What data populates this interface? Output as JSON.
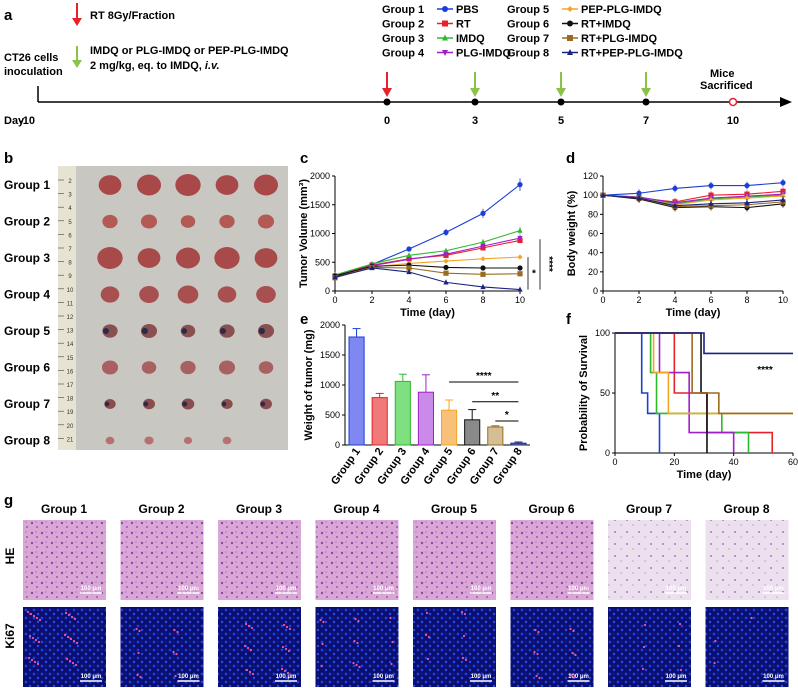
{
  "panels": {
    "a": {
      "letter": "a",
      "rt_label": "RT 8Gy/Fraction",
      "drug_label": "IMDQ or PLG-IMDQ or PEP-PLG-IMDQ",
      "dose_label": "2 mg/kg, eq. to IMDQ,",
      "dose_route": "i.v.",
      "inoc_line1": "CT26 cells",
      "inoc_line2": "inoculation",
      "day_label": "Day",
      "timeline_days": [
        "-10",
        "0",
        "3",
        "5",
        "7",
        "10"
      ],
      "sacrifice_line1": "Mice",
      "sacrifice_line2": "Sacrificed",
      "groups": [
        {
          "name": "Group 1",
          "treatment": "PBS",
          "color": "#1a3fd6",
          "marker": "circle"
        },
        {
          "name": "Group 2",
          "treatment": "RT",
          "color": "#e8202a",
          "marker": "square"
        },
        {
          "name": "Group 3",
          "treatment": "IMDQ",
          "color": "#2eb82e",
          "marker": "triangle-up"
        },
        {
          "name": "Group 4",
          "treatment": "PLG-IMDQ",
          "color": "#a020c8",
          "marker": "triangle-down"
        },
        {
          "name": "Group 5",
          "treatment": "PEP-PLG-IMDQ",
          "color": "#f5a524",
          "marker": "diamond"
        },
        {
          "name": "Group 6",
          "treatment": "RT+IMDQ",
          "color": "#111111",
          "marker": "circle"
        },
        {
          "name": "Group 7",
          "treatment": "RT+PLG-IMDQ",
          "color": "#9c6b22",
          "marker": "square"
        },
        {
          "name": "Group 8",
          "treatment": "RT+PEP-PLG-IMDQ",
          "color": "#1a237e",
          "marker": "triangle-up"
        }
      ]
    },
    "b": {
      "letter": "b",
      "rows": [
        "Group 1",
        "Group 2",
        "Group 3",
        "Group 4",
        "Group 5",
        "Group 6",
        "Group 7",
        "Group 8"
      ],
      "ruler_marks": [
        "2",
        "3",
        "4",
        "5",
        "6",
        "7",
        "8",
        "9",
        "10",
        "11",
        "12",
        "13",
        "14",
        "15",
        "16",
        "17",
        "18",
        "19",
        "20",
        "21"
      ]
    },
    "g": {
      "letter": "g",
      "columns": [
        "Group 1",
        "Group 2",
        "Group 3",
        "Group 4",
        "Group 5",
        "Group 6",
        "Group 7",
        "Group 8"
      ],
      "row_labels": [
        "HE",
        "Ki67"
      ],
      "scale_bar": "100 μm"
    }
  },
  "chart_data": [
    {
      "panel": "c",
      "type": "line",
      "xlabel": "Time (day)",
      "ylabel": "Tumor Volume (mm³)",
      "x": [
        0,
        2,
        4,
        6,
        8,
        10
      ],
      "xlim": [
        0,
        10
      ],
      "ylim": [
        0,
        2000
      ],
      "xticks": [
        "0",
        "2",
        "4",
        "6",
        "8",
        "10"
      ],
      "yticks": [
        "0",
        "500",
        "1000",
        "1500",
        "2000"
      ],
      "series": [
        {
          "name": "Group 1",
          "values": [
            270,
            460,
            730,
            1020,
            1350,
            1850
          ]
        },
        {
          "name": "Group 2",
          "values": [
            260,
            450,
            560,
            620,
            750,
            880
          ]
        },
        {
          "name": "Group 3",
          "values": [
            280,
            470,
            620,
            700,
            850,
            1050
          ]
        },
        {
          "name": "Group 4",
          "values": [
            250,
            440,
            550,
            640,
            780,
            920
          ]
        },
        {
          "name": "Group 5",
          "values": [
            240,
            420,
            480,
            520,
            560,
            590
          ]
        },
        {
          "name": "Group 6",
          "values": [
            260,
            430,
            450,
            410,
            400,
            400
          ]
        },
        {
          "name": "Group 7",
          "values": [
            230,
            410,
            400,
            310,
            290,
            300
          ]
        },
        {
          "name": "Group 8",
          "values": [
            240,
            400,
            330,
            150,
            70,
            25
          ]
        }
      ],
      "significance": [
        "*",
        "****"
      ]
    },
    {
      "panel": "d",
      "type": "line",
      "xlabel": "Time (day)",
      "ylabel": "Body weight (%)",
      "x": [
        0,
        2,
        4,
        6,
        8,
        10
      ],
      "xlim": [
        0,
        10
      ],
      "ylim": [
        0,
        120
      ],
      "xticks": [
        "0",
        "2",
        "4",
        "6",
        "8",
        "10"
      ],
      "yticks": [
        "0",
        "20",
        "40",
        "60",
        "80",
        "100",
        "120"
      ],
      "series": [
        {
          "name": "Group 1",
          "values": [
            100,
            102,
            107,
            110,
            110,
            113
          ]
        },
        {
          "name": "Group 2",
          "values": [
            100,
            97,
            93,
            100,
            101,
            104
          ]
        },
        {
          "name": "Group 3",
          "values": [
            100,
            98,
            91,
            96,
            98,
            100
          ]
        },
        {
          "name": "Group 4",
          "values": [
            100,
            98,
            92,
            97,
            99,
            101
          ]
        },
        {
          "name": "Group 5",
          "values": [
            100,
            97,
            90,
            95,
            97,
            99
          ]
        },
        {
          "name": "Group 6",
          "values": [
            100,
            96,
            87,
            88,
            87,
            91
          ]
        },
        {
          "name": "Group 7",
          "values": [
            100,
            97,
            88,
            89,
            90,
            93
          ]
        },
        {
          "name": "Group 8",
          "values": [
            100,
            97,
            89,
            91,
            92,
            95
          ]
        }
      ]
    },
    {
      "panel": "e",
      "type": "bar",
      "ylabel": "Weight of tumor (mg)",
      "categories": [
        "Group 1",
        "Group 2",
        "Group 3",
        "Group 4",
        "Group 5",
        "Group 6",
        "Group 7",
        "Group 8"
      ],
      "values": [
        1800,
        790,
        1060,
        880,
        580,
        420,
        300,
        30
      ],
      "errors": [
        140,
        70,
        120,
        290,
        170,
        170,
        20,
        20
      ],
      "ylim": [
        0,
        2000
      ],
      "yticks": [
        "0",
        "500",
        "1000",
        "1500",
        "2000"
      ],
      "comparisons": [
        {
          "label": "****",
          "from": "Group 5",
          "to": "Group 8"
        },
        {
          "label": "**",
          "from": "Group 6",
          "to": "Group 8"
        },
        {
          "label": "*",
          "from": "Group 7",
          "to": "Group 8"
        }
      ]
    },
    {
      "panel": "f",
      "type": "line",
      "xlabel": "Time (day)",
      "ylabel": "Probability of Survival",
      "xlim": [
        0,
        60
      ],
      "ylim": [
        0,
        100
      ],
      "xticks": [
        "0",
        "20",
        "40",
        "60"
      ],
      "yticks": [
        "0",
        "50",
        "100"
      ],
      "significance": "****",
      "series": [
        {
          "name": "Group 1",
          "steps": [
            [
              0,
              100
            ],
            [
              9,
              100
            ],
            [
              9,
              50
            ],
            [
              11,
              50
            ],
            [
              11,
              33
            ],
            [
              15,
              33
            ],
            [
              15,
              0
            ]
          ]
        },
        {
          "name": "Group 2",
          "steps": [
            [
              0,
              100
            ],
            [
              20,
              100
            ],
            [
              20,
              50
            ],
            [
              31,
              50
            ],
            [
              31,
              17
            ],
            [
              53,
              17
            ],
            [
              53,
              0
            ]
          ]
        },
        {
          "name": "Group 3",
          "steps": [
            [
              0,
              100
            ],
            [
              12,
              100
            ],
            [
              12,
              67
            ],
            [
              14,
              67
            ],
            [
              14,
              33
            ],
            [
              36,
              33
            ],
            [
              36,
              17
            ],
            [
              45,
              17
            ],
            [
              45,
              0
            ]
          ]
        },
        {
          "name": "Group 4",
          "steps": [
            [
              0,
              100
            ],
            [
              15,
              100
            ],
            [
              15,
              67
            ],
            [
              25,
              67
            ],
            [
              25,
              17
            ],
            [
              40,
              17
            ],
            [
              40,
              0
            ]
          ]
        },
        {
          "name": "Group 5",
          "steps": [
            [
              0,
              100
            ],
            [
              13,
              100
            ],
            [
              13,
              67
            ],
            [
              18,
              67
            ],
            [
              18,
              33
            ],
            [
              60,
              33
            ]
          ]
        },
        {
          "name": "Group 6",
          "steps": [
            [
              0,
              100
            ],
            [
              29,
              100
            ],
            [
              29,
              50
            ],
            [
              31,
              50
            ],
            [
              31,
              0
            ]
          ]
        },
        {
          "name": "Group 7",
          "steps": [
            [
              0,
              100
            ],
            [
              26,
              100
            ],
            [
              26,
              50
            ],
            [
              35,
              50
            ],
            [
              35,
              33
            ],
            [
              60,
              33
            ]
          ]
        },
        {
          "name": "Group 8",
          "steps": [
            [
              0,
              100
            ],
            [
              30,
              100
            ],
            [
              30,
              83
            ],
            [
              60,
              83
            ]
          ]
        }
      ]
    }
  ]
}
